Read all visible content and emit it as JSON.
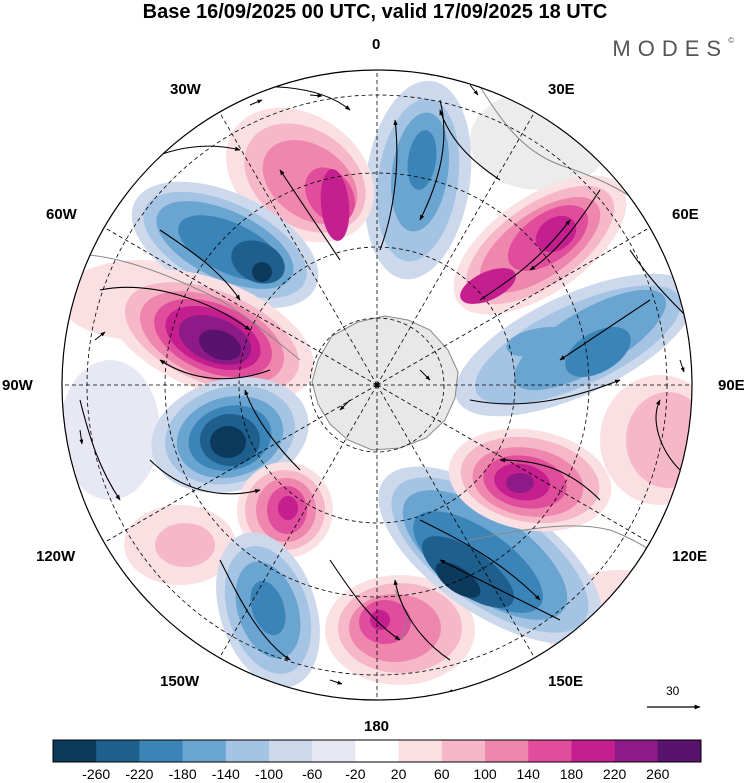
{
  "title": "Base 16/09/2025 00 UTC, valid 17/09/2025 18 UTC",
  "brand": "MODES",
  "brand_mark": "©",
  "longitude_labels": {
    "lon_0": "0",
    "lon_30e": "30E",
    "lon_60e": "60E",
    "lon_90e": "90E",
    "lon_120e": "120E",
    "lon_150e": "150E",
    "lon_180": "180",
    "lon_150w": "150W",
    "lon_120w": "120W",
    "lon_90w": "90W",
    "lon_60w": "60W",
    "lon_30w": "30W"
  },
  "vector_scale": {
    "label": "30"
  },
  "colorbar": {
    "ticks": [
      "-260",
      "-220",
      "-180",
      "-140",
      "-100",
      "-60",
      "-20",
      "20",
      "60",
      "100",
      "140",
      "180",
      "220",
      "260"
    ],
    "colors": [
      "#0c3a5c",
      "#1e5f8e",
      "#3b84b8",
      "#6aa4d0",
      "#a5c3e3",
      "#ccd8ec",
      "#e7e8f3",
      "#ffffff",
      "#fbe0e3",
      "#f6b8c8",
      "#ef86ad",
      "#e04d9c",
      "#c41e8f",
      "#8d1a86",
      "#5a126f"
    ]
  },
  "colors": {
    "land": "#e8e8e8",
    "coast": "#888888",
    "grid": "#000000"
  }
}
